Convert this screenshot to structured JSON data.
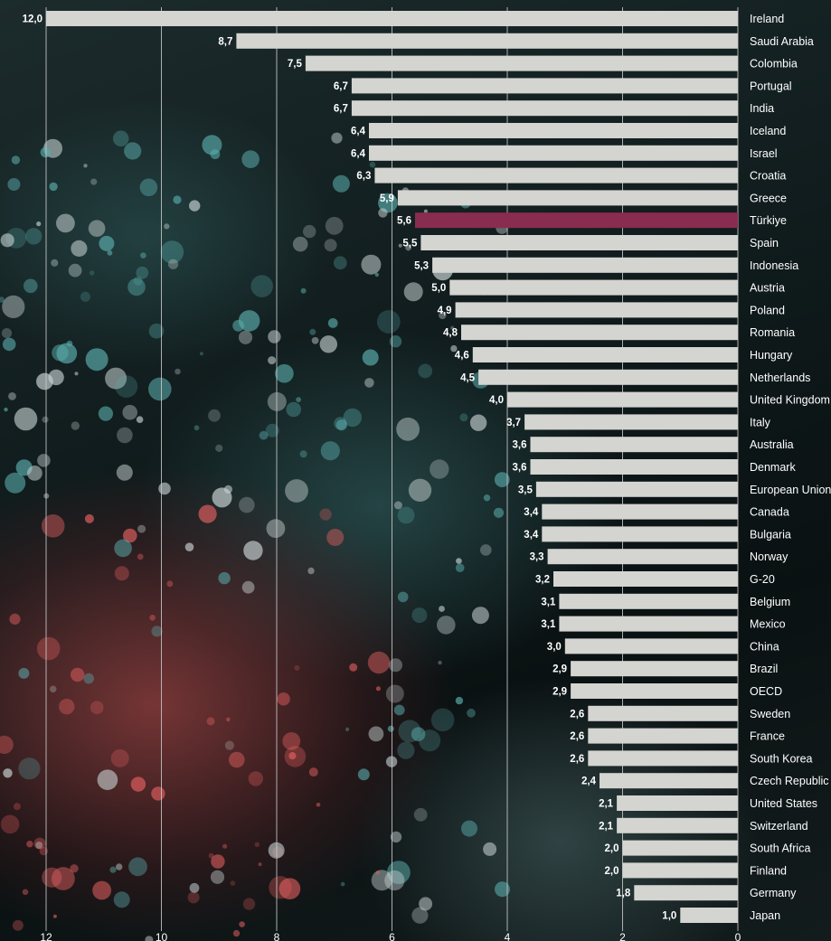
{
  "chart_data": {
    "type": "bar",
    "orientation": "horizontal",
    "direction": "right-to-left",
    "categories": [
      "Ireland",
      "Saudi Arabia",
      "Colombia",
      "Portugal",
      "India",
      "Iceland",
      "Israel",
      "Croatia",
      "Greece",
      "Türkiye",
      "Spain",
      "Indonesia",
      "Austria",
      "Poland",
      "Romania",
      "Hungary",
      "Netherlands",
      "United Kingdom",
      "Italy",
      "Australia",
      "Denmark",
      "European Union",
      "Canada",
      "Bulgaria",
      "Norway",
      "G-20",
      "Belgium",
      "Mexico",
      "China",
      "Brazil",
      "OECD",
      "Sweden",
      "France",
      "South Korea",
      "Czech Republic",
      "United States",
      "Switzerland",
      "South Africa",
      "Finland",
      "Germany",
      "Japan"
    ],
    "values": [
      12.0,
      8.7,
      7.5,
      6.7,
      6.7,
      6.4,
      6.4,
      6.3,
      5.9,
      5.6,
      5.5,
      5.3,
      5.0,
      4.9,
      4.8,
      4.6,
      4.5,
      4.0,
      3.7,
      3.6,
      3.6,
      3.5,
      3.4,
      3.4,
      3.3,
      3.2,
      3.1,
      3.1,
      3.0,
      2.9,
      2.9,
      2.6,
      2.6,
      2.6,
      2.4,
      2.1,
      2.1,
      2.0,
      2.0,
      1.8,
      1.0
    ],
    "value_labels": [
      "12,0",
      "8,7",
      "7,5",
      "6,7",
      "6,7",
      "6,4",
      "6,4",
      "6,3",
      "5,9",
      "5,6",
      "5,5",
      "5,3",
      "5,0",
      "4,9",
      "4,8",
      "4,6",
      "4,5",
      "4,0",
      "3,7",
      "3,6",
      "3,6",
      "3,5",
      "3,4",
      "3,4",
      "3,3",
      "3,2",
      "3,1",
      "3,1",
      "3,0",
      "2,9",
      "2,9",
      "2,6",
      "2,6",
      "2,6",
      "2,4",
      "2,1",
      "2,1",
      "2,0",
      "2,0",
      "1,8",
      "1,0"
    ],
    "highlight": "Türkiye",
    "xlim": [
      0,
      12
    ],
    "xticks": [
      12,
      10,
      8,
      6,
      4,
      2,
      0
    ],
    "xlabel": "",
    "ylabel": "",
    "grid": true,
    "colors": {
      "bar": "#d4d4d1",
      "highlight": "#8a2c4f",
      "grid": "#c9c9c9",
      "text": "#ffffff"
    }
  }
}
